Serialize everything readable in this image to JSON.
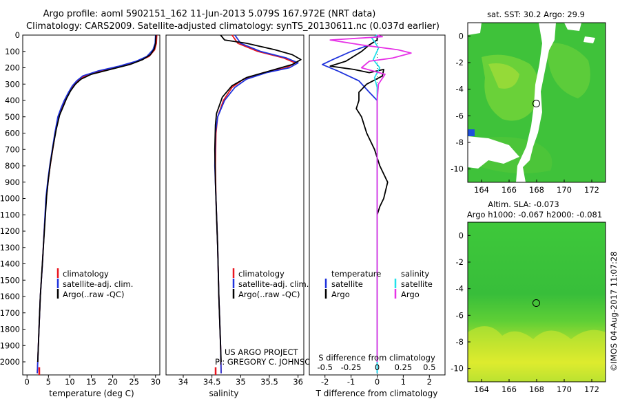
{
  "header": {
    "title_line1": "Argo profile: aoml 5902151_162 11-Jun-2013 5.079S 167.972E (NRT data)",
    "title_line2": "Climatology: CARS2009. Satellite-adjusted climatology: synTS_20130611.nc (0.037d earlier)"
  },
  "credits": {
    "project": "US ARGO PROJECT",
    "pi": "PI: GREGORY C. JOHNSON",
    "timestamp": "©IMOS 04-Aug-2017 11:07:28"
  },
  "colors": {
    "climatology": "#e8141e",
    "satellite": "#1e32dc",
    "argo": "#000000",
    "satellite_s": "#22e0ea",
    "argo_s": "#e632e6"
  },
  "chart_data": [
    {
      "type": "line",
      "id": "temperature",
      "xlabel": "temperature (deg C)",
      "ylabel": "",
      "xlim": [
        -1,
        31
      ],
      "ylim": [
        2080,
        0
      ],
      "xticks": [
        0,
        5,
        10,
        15,
        20,
        25,
        30
      ],
      "yticks": [
        0,
        100,
        200,
        300,
        400,
        500,
        600,
        700,
        800,
        900,
        1000,
        1100,
        1200,
        1300,
        1400,
        1500,
        1600,
        1700,
        1800,
        1900,
        2000
      ],
      "legend": [
        "climatology",
        "satellite-adj. clim.",
        "Argo(..raw -QC)"
      ],
      "legend_position": "lower-left",
      "series": [
        {
          "name": "climatology",
          "color_key": "climatology",
          "points": [
            [
              30.3,
              0
            ],
            [
              30.2,
              50
            ],
            [
              29.8,
              90
            ],
            [
              28.5,
              130
            ],
            [
              26.0,
              160
            ],
            [
              22.0,
              190
            ],
            [
              17.0,
              220
            ],
            [
              13.5,
              250
            ],
            [
              11.8,
              280
            ],
            [
              10.8,
              310
            ],
            [
              9.8,
              350
            ],
            [
              8.8,
              400
            ],
            [
              8.0,
              450
            ],
            [
              7.3,
              500
            ],
            [
              6.6,
              600
            ],
            [
              6.0,
              700
            ],
            [
              5.4,
              800
            ],
            [
              4.9,
              900
            ],
            [
              4.5,
              1000
            ],
            [
              4.0,
              1200
            ],
            [
              3.6,
              1400
            ],
            [
              3.1,
              1600
            ],
            [
              2.8,
              1800
            ],
            [
              2.5,
              2000
            ],
            [
              2.4,
              2070
            ]
          ]
        },
        {
          "name": "satellite-adj. clim.",
          "color_key": "satellite",
          "points": [
            [
              30.0,
              0
            ],
            [
              29.9,
              50
            ],
            [
              29.4,
              90
            ],
            [
              28.0,
              130
            ],
            [
              25.5,
              160
            ],
            [
              21.5,
              190
            ],
            [
              16.5,
              220
            ],
            [
              13.0,
              250
            ],
            [
              11.6,
              280
            ],
            [
              10.6,
              310
            ],
            [
              9.7,
              350
            ],
            [
              8.7,
              400
            ],
            [
              7.9,
              450
            ],
            [
              7.2,
              500
            ],
            [
              6.5,
              600
            ],
            [
              5.9,
              700
            ],
            [
              5.3,
              800
            ],
            [
              4.8,
              900
            ],
            [
              4.4,
              1000
            ],
            [
              4.0,
              1200
            ],
            [
              3.6,
              1400
            ],
            [
              3.1,
              1600
            ],
            [
              2.8,
              1800
            ],
            [
              2.5,
              2000
            ],
            [
              2.4,
              2070
            ]
          ]
        },
        {
          "name": "Argo(..raw -QC)",
          "color_key": "argo",
          "points": [
            [
              30.1,
              0
            ],
            [
              30.0,
              50
            ],
            [
              29.7,
              85
            ],
            [
              28.8,
              120
            ],
            [
              27.0,
              150
            ],
            [
              24.0,
              180
            ],
            [
              19.5,
              210
            ],
            [
              15.0,
              240
            ],
            [
              12.6,
              270
            ],
            [
              11.3,
              300
            ],
            [
              10.2,
              340
            ],
            [
              9.2,
              390
            ],
            [
              8.4,
              440
            ],
            [
              7.6,
              490
            ],
            [
              6.8,
              580
            ],
            [
              6.1,
              680
            ],
            [
              5.5,
              780
            ],
            [
              5.0,
              880
            ],
            [
              4.6,
              980
            ],
            [
              4.1,
              1180
            ],
            [
              3.6,
              1390
            ],
            [
              3.1,
              1600
            ],
            [
              2.8,
              1800
            ],
            [
              2.5,
              2000
            ]
          ]
        }
      ]
    },
    {
      "type": "line",
      "id": "salinity",
      "xlabel": "salinity",
      "ylabel": "",
      "xlim": [
        33.7,
        36.1
      ],
      "ylim": [
        2080,
        0
      ],
      "xticks": [
        34,
        34.5,
        35,
        35.5,
        36
      ],
      "legend": [
        "climatology",
        "satellite-adj. clim.",
        "Argo(..raw -QC)"
      ],
      "legend_position": "lower-right",
      "series": [
        {
          "name": "climatology",
          "color_key": "climatology",
          "points": [
            [
              34.85,
              0
            ],
            [
              34.95,
              50
            ],
            [
              35.3,
              100
            ],
            [
              35.75,
              140
            ],
            [
              35.95,
              170
            ],
            [
              35.8,
              200
            ],
            [
              35.4,
              230
            ],
            [
              35.05,
              270
            ],
            [
              34.85,
              320
            ],
            [
              34.7,
              400
            ],
            [
              34.6,
              500
            ],
            [
              34.57,
              600
            ],
            [
              34.56,
              800
            ],
            [
              34.57,
              1000
            ],
            [
              34.6,
              1300
            ],
            [
              34.62,
              1600
            ],
            [
              34.65,
              1900
            ],
            [
              34.66,
              2070
            ]
          ]
        },
        {
          "name": "satellite-adj. clim.",
          "color_key": "satellite",
          "points": [
            [
              34.9,
              0
            ],
            [
              35.0,
              50
            ],
            [
              35.35,
              100
            ],
            [
              35.8,
              140
            ],
            [
              36.0,
              170
            ],
            [
              35.85,
              200
            ],
            [
              35.45,
              230
            ],
            [
              35.1,
              270
            ],
            [
              34.9,
              320
            ],
            [
              34.72,
              400
            ],
            [
              34.6,
              500
            ],
            [
              34.56,
              600
            ],
            [
              34.55,
              800
            ],
            [
              34.57,
              1000
            ],
            [
              34.6,
              1300
            ],
            [
              34.62,
              1600
            ],
            [
              34.65,
              1900
            ],
            [
              34.66,
              2070
            ]
          ]
        },
        {
          "name": "Argo(..raw -QC)",
          "color_key": "argo",
          "points": [
            [
              34.65,
              0
            ],
            [
              34.72,
              30
            ],
            [
              35.1,
              50
            ],
            [
              35.6,
              90
            ],
            [
              35.9,
              120
            ],
            [
              36.05,
              150
            ],
            [
              35.9,
              180
            ],
            [
              35.5,
              220
            ],
            [
              35.1,
              260
            ],
            [
              34.85,
              310
            ],
            [
              34.68,
              380
            ],
            [
              34.58,
              480
            ],
            [
              34.56,
              550
            ],
            [
              34.55,
              700
            ],
            [
              34.56,
              900
            ],
            [
              34.58,
              1100
            ],
            [
              34.6,
              1300
            ],
            [
              34.62,
              1600
            ],
            [
              34.64,
              1800
            ],
            [
              34.66,
              2000
            ]
          ]
        }
      ]
    },
    {
      "type": "line",
      "id": "differences",
      "xlabel": "T difference from climatology",
      "xlabel_top": "S difference from climatology",
      "xlim": [
        -2.6,
        2.6
      ],
      "ylim": [
        2080,
        0
      ],
      "xticks": [
        -2,
        -1,
        0,
        1,
        2
      ],
      "xticks_top": [
        -0.5,
        -0.25,
        0,
        0.25,
        0.5
      ],
      "legend_groups": [
        {
          "title": "temperature",
          "items": [
            "satellite",
            "Argo"
          ]
        },
        {
          "title": "salinity",
          "items": [
            "satellite",
            "Argo"
          ]
        }
      ],
      "legend_position": "center",
      "series": [
        {
          "name": "T satellite",
          "color_key": "satellite",
          "points": [
            [
              0,
              0
            ],
            [
              0,
              30
            ],
            [
              -0.3,
              60
            ],
            [
              -1.0,
              100
            ],
            [
              -1.7,
              150
            ],
            [
              -2.1,
              180
            ],
            [
              -1.5,
              220
            ],
            [
              -0.7,
              280
            ],
            [
              -0.3,
              350
            ],
            [
              0,
              400
            ],
            [
              0,
              2070
            ]
          ]
        },
        {
          "name": "T Argo",
          "color_key": "argo",
          "points": [
            [
              0,
              0
            ],
            [
              0,
              30
            ],
            [
              -0.3,
              60
            ],
            [
              -0.6,
              100
            ],
            [
              -1.2,
              160
            ],
            [
              -1.8,
              190
            ],
            [
              -0.9,
              210
            ],
            [
              -0.3,
              230
            ],
            [
              0.25,
              210
            ],
            [
              0.2,
              250
            ],
            [
              -0.4,
              300
            ],
            [
              -0.7,
              350
            ],
            [
              -0.7,
              400
            ],
            [
              -0.8,
              450
            ],
            [
              -0.6,
              500
            ],
            [
              -0.4,
              600
            ],
            [
              -0.1,
              700
            ],
            [
              0.1,
              800
            ],
            [
              0.4,
              900
            ],
            [
              0.25,
              1000
            ],
            [
              0.1,
              1050
            ],
            [
              0,
              1100
            ],
            [
              0,
              2000
            ]
          ]
        },
        {
          "name": "S satellite",
          "color_key": "satellite_s",
          "points": [
            [
              0.0,
              0
            ],
            [
              -0.2,
              20
            ],
            [
              -0.1,
              40
            ],
            [
              0.05,
              80
            ],
            [
              -0.15,
              150
            ],
            [
              0.1,
              200
            ],
            [
              -0.1,
              260
            ],
            [
              0,
              320
            ],
            [
              0,
              400
            ],
            [
              0,
              2070
            ]
          ]
        },
        {
          "name": "S Argo",
          "color_key": "argo_s",
          "points": [
            [
              0.0,
              0
            ],
            [
              0.2,
              10
            ],
            [
              -1.8,
              30
            ],
            [
              -0.6,
              60
            ],
            [
              0.8,
              90
            ],
            [
              1.3,
              110
            ],
            [
              0.6,
              140
            ],
            [
              -0.3,
              160
            ],
            [
              -0.6,
              200
            ],
            [
              0.3,
              240
            ],
            [
              0.05,
              300
            ],
            [
              0,
              400
            ],
            [
              0,
              2000
            ]
          ]
        }
      ]
    },
    {
      "type": "heatmap",
      "id": "sst-map",
      "title": "sat. SST: 30.2  Argo: 29.9",
      "xlim": [
        163,
        173
      ],
      "ylim": [
        -11,
        1
      ],
      "xticks": [
        164,
        166,
        168,
        170,
        172
      ],
      "yticks": [
        0,
        -2,
        -4,
        -6,
        -8,
        -10
      ],
      "marker": {
        "lon": 167.972,
        "lat": -5.079
      }
    },
    {
      "type": "heatmap",
      "id": "sla-map",
      "title": "Altim. SLA: -0.073",
      "subtitle": "Argo h1000: -0.067 h2000: -0.081",
      "xlim": [
        163,
        173
      ],
      "ylim": [
        -11,
        1
      ],
      "xticks": [
        164,
        166,
        168,
        170,
        172
      ],
      "yticks": [
        0,
        -2,
        -4,
        -6,
        -8,
        -10
      ],
      "marker": {
        "lon": 167.972,
        "lat": -5.079
      }
    }
  ]
}
